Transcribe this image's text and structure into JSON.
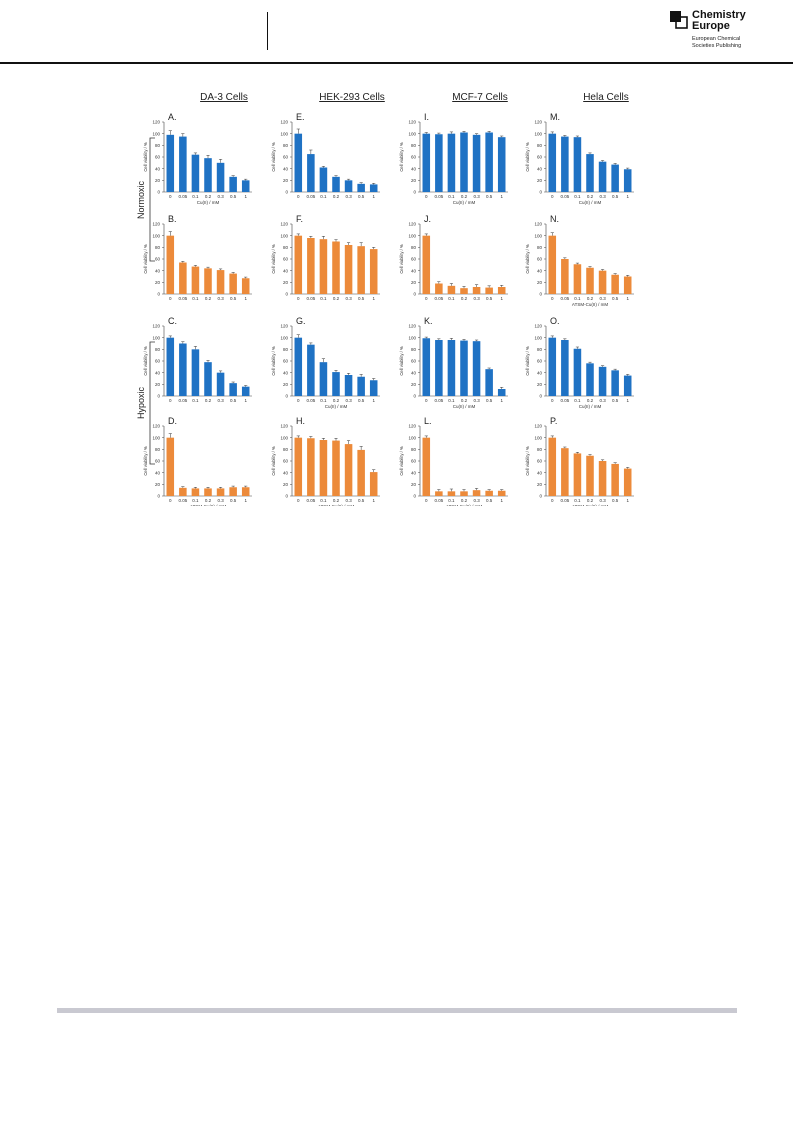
{
  "header": {
    "logo_line1": "Chemistry",
    "logo_line2": "Europe",
    "logo_sub1": "European Chemical",
    "logo_sub2": "Societies Publishing"
  },
  "figure": {
    "column_titles": [
      "DA-3 Cells",
      "HEK-293 Cells",
      "MCF-7 Cells",
      "Hela Cells"
    ],
    "row_labels": [
      "Normoxic",
      "Hypoxic"
    ],
    "colors": {
      "blue": "#1f72c4",
      "orange": "#ec8a3a"
    }
  },
  "chart_data": [
    {
      "type": "bar",
      "panel": "A.",
      "color": "blue",
      "categories": [
        "0",
        "0.05",
        "0.1",
        "0.2",
        "0.3",
        "0.5",
        "1"
      ],
      "values": [
        98,
        95,
        64,
        58,
        50,
        26,
        20
      ],
      "errors": [
        7,
        5,
        3,
        5,
        6,
        2,
        2
      ],
      "xlabel": "Cu(II) / mM",
      "ylabel": "Cell viability / %",
      "ylim": [
        0,
        120
      ],
      "yticks": [
        0,
        20,
        40,
        60,
        80,
        100,
        120
      ]
    },
    {
      "type": "bar",
      "panel": "B.",
      "color": "orange",
      "categories": [
        "0",
        "0.05",
        "0.1",
        "0.2",
        "0.3",
        "0.5",
        "1"
      ],
      "values": [
        100,
        54,
        47,
        44,
        41,
        35,
        27
      ],
      "errors": [
        7,
        2,
        2,
        2,
        2,
        2,
        2
      ],
      "xlabel": "",
      "ylabel": "Cell viability / %",
      "ylim": [
        0,
        120
      ],
      "yticks": [
        0,
        20,
        40,
        60,
        80,
        100,
        120
      ]
    },
    {
      "type": "bar",
      "panel": "C.",
      "color": "blue",
      "categories": [
        "0",
        "0.05",
        "0.1",
        "0.2",
        "0.3",
        "0.5",
        "1"
      ],
      "values": [
        100,
        90,
        80,
        58,
        40,
        22,
        16
      ],
      "errors": [
        3,
        3,
        5,
        3,
        3,
        2,
        2
      ],
      "xlabel": "",
      "ylabel": "Cell viability / %",
      "ylim": [
        0,
        120
      ],
      "yticks": [
        0,
        20,
        40,
        60,
        80,
        100,
        120
      ]
    },
    {
      "type": "bar",
      "panel": "D.",
      "color": "orange",
      "categories": [
        "0",
        "0.05",
        "0.1",
        "0.2",
        "0.3",
        "0.5",
        "1"
      ],
      "values": [
        100,
        14,
        13,
        13,
        13,
        15,
        15
      ],
      "errors": [
        7,
        2,
        2,
        2,
        2,
        2,
        2
      ],
      "xlabel": "ATSM-Cu(II) / mM",
      "ylabel": "Cell viability / %",
      "ylim": [
        0,
        120
      ],
      "yticks": [
        0,
        20,
        40,
        60,
        80,
        100,
        120
      ]
    },
    {
      "type": "bar",
      "panel": "E.",
      "color": "blue",
      "categories": [
        "0",
        "0.05",
        "0.1",
        "0.2",
        "0.3",
        "0.5",
        "1"
      ],
      "values": [
        100,
        65,
        42,
        26,
        20,
        14,
        13
      ],
      "errors": [
        8,
        7,
        2,
        2,
        2,
        2,
        2
      ],
      "xlabel": "",
      "ylabel": "Cell viability / %",
      "ylim": [
        0,
        120
      ],
      "yticks": [
        0,
        20,
        40,
        60,
        80,
        100,
        120
      ]
    },
    {
      "type": "bar",
      "panel": "F.",
      "color": "orange",
      "categories": [
        "0",
        "0.05",
        "0.1",
        "0.2",
        "0.3",
        "0.5",
        "1"
      ],
      "values": [
        100,
        96,
        94,
        90,
        84,
        82,
        77
      ],
      "errors": [
        3,
        3,
        5,
        3,
        4,
        6,
        3
      ],
      "xlabel": "",
      "ylabel": "Cell viability / %",
      "ylim": [
        0,
        120
      ],
      "yticks": [
        0,
        20,
        40,
        60,
        80,
        100,
        120
      ]
    },
    {
      "type": "bar",
      "panel": "G.",
      "color": "blue",
      "categories": [
        "0",
        "0.05",
        "0.1",
        "0.2",
        "0.3",
        "0.5",
        "1"
      ],
      "values": [
        100,
        88,
        58,
        41,
        36,
        33,
        27
      ],
      "errors": [
        5,
        3,
        6,
        3,
        3,
        4,
        3
      ],
      "xlabel": "Cu(II) / mM",
      "ylabel": "Cell viability / %",
      "ylim": [
        0,
        120
      ],
      "yticks": [
        0,
        20,
        40,
        60,
        80,
        100,
        120
      ]
    },
    {
      "type": "bar",
      "panel": "H.",
      "color": "orange",
      "categories": [
        "0",
        "0.05",
        "0.1",
        "0.2",
        "0.3",
        "0.5",
        "1"
      ],
      "values": [
        100,
        99,
        96,
        95,
        89,
        79,
        41
      ],
      "errors": [
        3,
        3,
        3,
        4,
        6,
        6,
        4
      ],
      "xlabel": "ATSM-Cu(II) / mM",
      "ylabel": "Cell viability / %",
      "ylim": [
        0,
        120
      ],
      "yticks": [
        0,
        20,
        40,
        60,
        80,
        100,
        120
      ]
    },
    {
      "type": "bar",
      "panel": "I.",
      "color": "blue",
      "categories": [
        "0",
        "0.05",
        "0.1",
        "0.2",
        "0.3",
        "0.5",
        "1"
      ],
      "values": [
        100,
        99,
        100,
        102,
        98,
        102,
        94
      ],
      "errors": [
        2,
        2,
        3,
        2,
        2,
        2,
        2
      ],
      "xlabel": "Cu(II) / mM",
      "ylabel": "Cell viability / %",
      "ylim": [
        0,
        120
      ],
      "yticks": [
        0,
        20,
        40,
        60,
        80,
        100,
        120
      ]
    },
    {
      "type": "bar",
      "panel": "J.",
      "color": "orange",
      "categories": [
        "0",
        "0.05",
        "0.1",
        "0.2",
        "0.3",
        "0.5",
        "1"
      ],
      "values": [
        100,
        18,
        14,
        10,
        12,
        11,
        12
      ],
      "errors": [
        3,
        3,
        4,
        3,
        4,
        3,
        3
      ],
      "xlabel": "",
      "ylabel": "Cell viability / %",
      "ylim": [
        0,
        120
      ],
      "yticks": [
        0,
        20,
        40,
        60,
        80,
        100,
        120
      ]
    },
    {
      "type": "bar",
      "panel": "K.",
      "color": "blue",
      "categories": [
        "0",
        "0.05",
        "0.1",
        "0.2",
        "0.3",
        "0.5",
        "1"
      ],
      "values": [
        99,
        96,
        96,
        95,
        94,
        46,
        12
      ],
      "errors": [
        2,
        2,
        3,
        2,
        2,
        2,
        3
      ],
      "xlabel": "Cu(II) / mM",
      "ylabel": "Cell viability / %",
      "ylim": [
        0,
        120
      ],
      "yticks": [
        0,
        20,
        40,
        60,
        80,
        100,
        120
      ]
    },
    {
      "type": "bar",
      "panel": "L.",
      "color": "orange",
      "categories": [
        "0",
        "0.05",
        "0.1",
        "0.2",
        "0.3",
        "0.5",
        "1"
      ],
      "values": [
        100,
        8,
        8,
        8,
        10,
        9,
        9
      ],
      "errors": [
        3,
        3,
        4,
        3,
        3,
        2,
        2
      ],
      "xlabel": "ATSM-Cu(II) / mM",
      "ylabel": "Cell viability / %",
      "ylim": [
        0,
        120
      ],
      "yticks": [
        0,
        20,
        40,
        60,
        80,
        100,
        120
      ]
    },
    {
      "type": "bar",
      "panel": "M.",
      "color": "blue",
      "categories": [
        "0",
        "0.05",
        "0.1",
        "0.2",
        "0.3",
        "0.5",
        "1"
      ],
      "values": [
        100,
        95,
        94,
        65,
        52,
        47,
        39
      ],
      "errors": [
        3,
        2,
        2,
        2,
        2,
        2,
        2
      ],
      "xlabel": "Cu(II) / mM",
      "ylabel": "Cell viability / %",
      "ylim": [
        0,
        120
      ],
      "yticks": [
        0,
        20,
        40,
        60,
        80,
        100,
        120
      ]
    },
    {
      "type": "bar",
      "panel": "N.",
      "color": "orange",
      "categories": [
        "0",
        "0.05",
        "0.1",
        "0.2",
        "0.3",
        "0.5",
        "1"
      ],
      "values": [
        100,
        60,
        51,
        45,
        40,
        33,
        30
      ],
      "errors": [
        5,
        2,
        2,
        2,
        2,
        2,
        2
      ],
      "xlabel": "ATSM-Cu(II) / mM",
      "ylabel": "Cell viability / %",
      "ylim": [
        0,
        120
      ],
      "yticks": [
        0,
        20,
        40,
        60,
        80,
        100,
        120
      ]
    },
    {
      "type": "bar",
      "panel": "O.",
      "color": "blue",
      "categories": [
        "0",
        "0.05",
        "0.1",
        "0.2",
        "0.3",
        "0.5",
        "1"
      ],
      "values": [
        100,
        96,
        81,
        56,
        50,
        44,
        35
      ],
      "errors": [
        3,
        2,
        3,
        2,
        2,
        2,
        2
      ],
      "xlabel": "Cu(II) / mM",
      "ylabel": "Cell viability / %",
      "ylim": [
        0,
        120
      ],
      "yticks": [
        0,
        20,
        40,
        60,
        80,
        100,
        120
      ]
    },
    {
      "type": "bar",
      "panel": "P.",
      "color": "orange",
      "categories": [
        "0",
        "0.05",
        "0.1",
        "0.2",
        "0.3",
        "0.5",
        "1"
      ],
      "values": [
        100,
        82,
        73,
        69,
        60,
        55,
        47
      ],
      "errors": [
        3,
        2,
        2,
        2,
        2,
        2,
        2
      ],
      "xlabel": "ATSM-Cu(II) / mM",
      "ylabel": "Cell viability / %",
      "ylim": [
        0,
        120
      ],
      "yticks": [
        0,
        20,
        40,
        60,
        80,
        100,
        120
      ]
    }
  ]
}
